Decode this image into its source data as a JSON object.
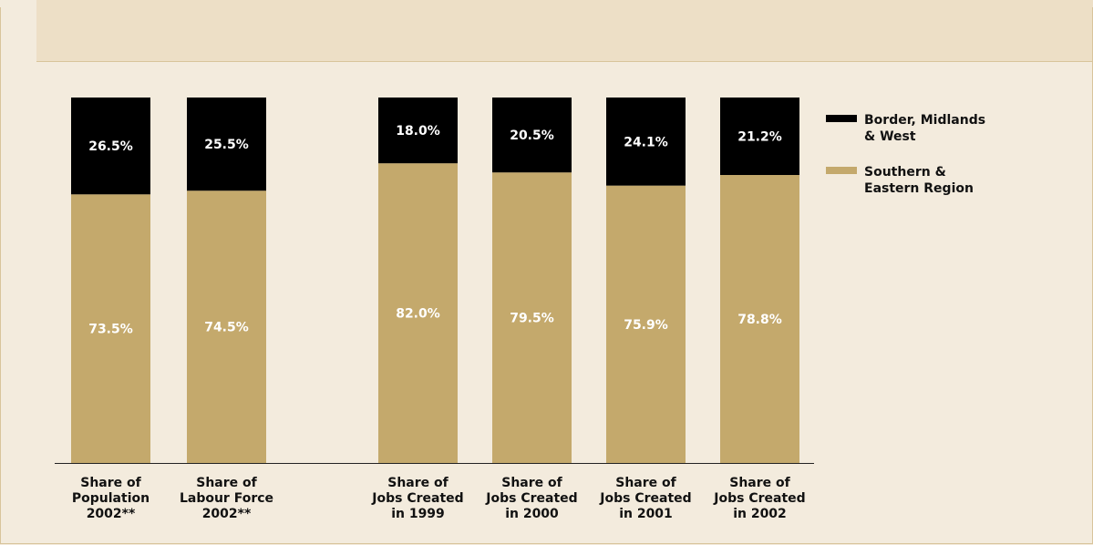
{
  "colors": {
    "bmw": "#000000",
    "ser": "#c4a96c",
    "page_background": "#f3ebdd",
    "header_background": "#eddfc6"
  },
  "chart_data": {
    "type": "bar",
    "stacked": true,
    "orientation": "vertical",
    "categories": [
      [
        "Share of",
        "Population",
        "2002**"
      ],
      [
        "Share of",
        "Labour Force",
        "2002**"
      ],
      [
        "Share of",
        "Jobs Created",
        "in 1999"
      ],
      [
        "Share of",
        "Jobs Created",
        "in 2000"
      ],
      [
        "Share of",
        "Jobs Created",
        "in 2001"
      ],
      [
        "Share of",
        "Jobs Created",
        "in 2002"
      ]
    ],
    "series": [
      {
        "name": [
          "Southern &",
          "Eastern Region"
        ],
        "color": "#c4a96c",
        "values": [
          73.5,
          74.5,
          82.0,
          79.5,
          75.9,
          78.8
        ],
        "labels": [
          "73.5%",
          "74.5%",
          "82.0%",
          "79.5%",
          "75.9%",
          "78.8%"
        ]
      },
      {
        "name": [
          "Border, Midlands",
          "& West"
        ],
        "color": "#000000",
        "values": [
          26.5,
          25.5,
          18.0,
          20.5,
          24.1,
          21.2
        ],
        "labels": [
          "26.5%",
          "25.5%",
          "18.0%",
          "20.5%",
          "24.1%",
          "21.2%"
        ]
      }
    ],
    "ylim": [
      0,
      100
    ],
    "legend_position": "right",
    "grid": false
  }
}
